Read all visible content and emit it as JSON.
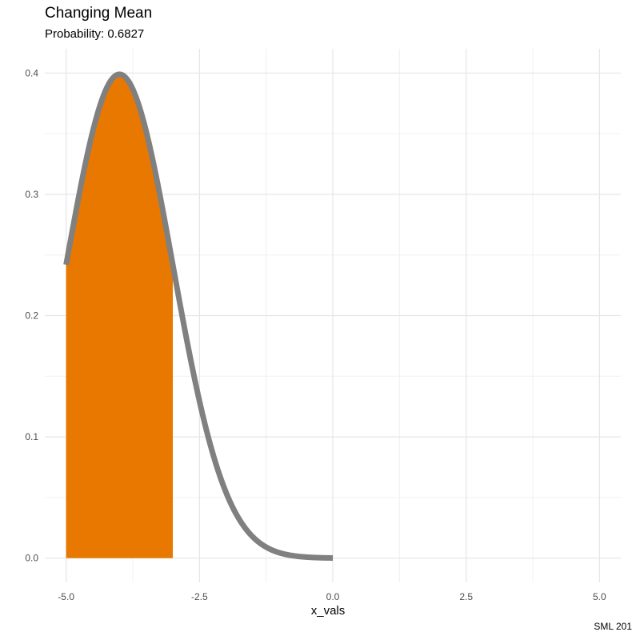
{
  "chart_data": {
    "type": "area",
    "title": "Changing Mean",
    "subtitle": "Probability: 0.6827",
    "caption": "SML 201",
    "xlabel": "x_vals",
    "ylabel": "",
    "xlim": [
      -5.4,
      5.4
    ],
    "ylim": [
      -0.02,
      0.42
    ],
    "x_ticks": [
      -5.0,
      -2.5,
      0.0,
      2.5,
      5.0
    ],
    "x_tick_labels": [
      "-5.0",
      "-2.5",
      "0.0",
      "2.5",
      "5.0"
    ],
    "y_ticks": [
      0.0,
      0.1,
      0.2,
      0.3,
      0.4
    ],
    "y_tick_labels": [
      "0.0",
      "0.1",
      "0.2",
      "0.3",
      "0.4"
    ],
    "grid": true,
    "curve": {
      "distribution": "normal",
      "mean": -4,
      "sd": 1,
      "x_range": [
        -5,
        0
      ],
      "color": "#808080"
    },
    "shaded_region": {
      "x_range": [
        -5,
        -3
      ],
      "color": "#e87800"
    }
  }
}
